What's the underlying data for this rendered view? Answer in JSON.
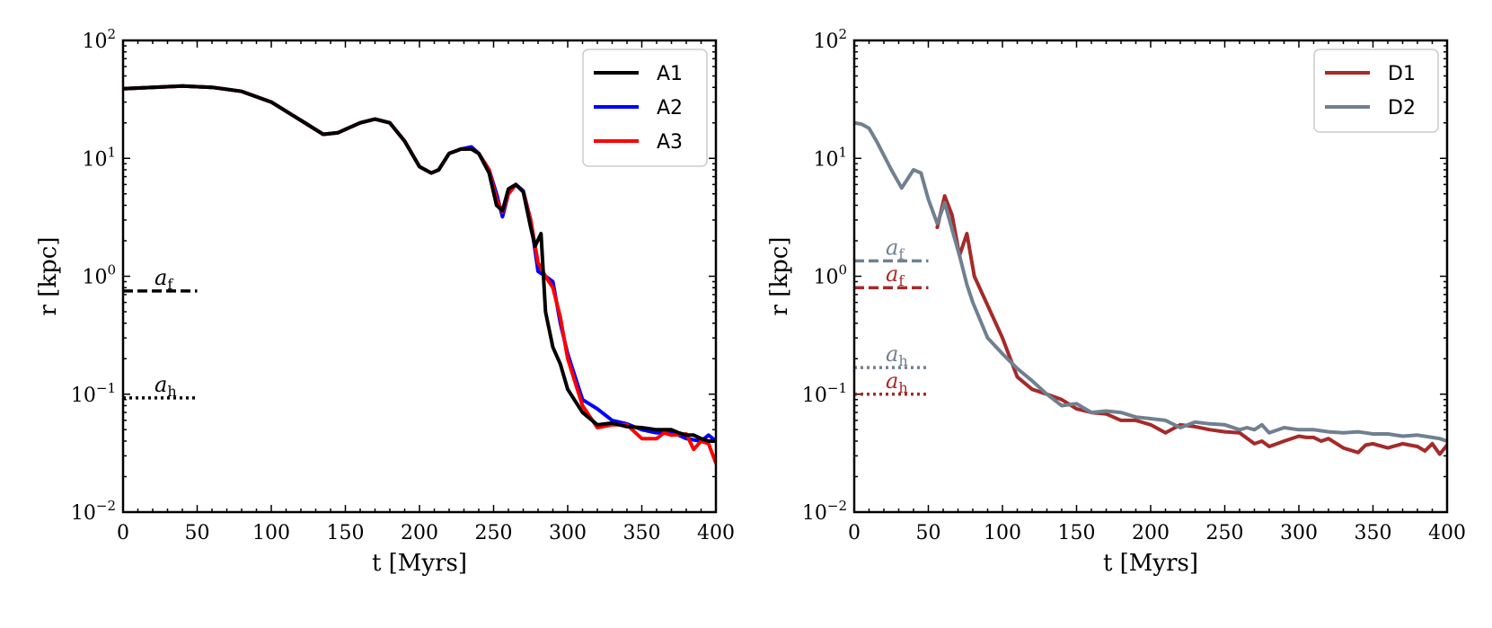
{
  "chart_data": [
    {
      "type": "line",
      "xlabel": "t [Myrs]",
      "ylabel": "r [kpc]",
      "xlim": [
        0,
        400
      ],
      "ylim": [
        0.01,
        100
      ],
      "yscale": "log",
      "xticks": [
        0,
        50,
        100,
        150,
        200,
        250,
        300,
        350,
        400
      ],
      "yticks": [
        {
          "value": 0.01,
          "base": "10",
          "exp": "−2"
        },
        {
          "value": 0.1,
          "base": "10",
          "exp": "−1"
        },
        {
          "value": 1,
          "base": "10",
          "exp": "0"
        },
        {
          "value": 10,
          "base": "10",
          "exp": "1"
        },
        {
          "value": 100,
          "base": "10",
          "exp": "2"
        }
      ],
      "legend_position": "top-right",
      "series": [
        {
          "name": "A2",
          "color": "#0000ff",
          "x": [
            0,
            20,
            40,
            60,
            80,
            100,
            120,
            135,
            145,
            160,
            170,
            180,
            190,
            200,
            208,
            213,
            220,
            228,
            235,
            240,
            247,
            252,
            256,
            260,
            265,
            270,
            275,
            280,
            285,
            290,
            295,
            300,
            310,
            320,
            330,
            340,
            350,
            360,
            370,
            380,
            390,
            395,
            400
          ],
          "y": [
            39,
            40,
            41,
            40,
            37,
            30,
            21,
            16,
            16.5,
            20,
            21.5,
            20,
            14,
            8.5,
            7.5,
            8,
            11,
            12,
            12.5,
            11,
            8,
            5,
            3.2,
            5,
            6,
            5.3,
            3,
            1.1,
            1.0,
            0.9,
            0.4,
            0.22,
            0.09,
            0.075,
            0.06,
            0.056,
            0.05,
            0.047,
            0.048,
            0.042,
            0.04,
            0.045,
            0.04
          ]
        },
        {
          "name": "A3",
          "color": "#ff0000",
          "x": [
            0,
            20,
            40,
            60,
            80,
            100,
            120,
            135,
            145,
            160,
            170,
            180,
            190,
            200,
            208,
            213,
            220,
            228,
            235,
            240,
            247,
            252,
            256,
            260,
            265,
            270,
            275,
            280,
            285,
            290,
            295,
            300,
            310,
            320,
            330,
            340,
            350,
            360,
            365,
            370,
            380,
            385,
            390,
            395,
            400
          ],
          "y": [
            39,
            40,
            41,
            40,
            37,
            30,
            21,
            16,
            16.5,
            20,
            21.5,
            20,
            14,
            8.5,
            7.5,
            8,
            11,
            12,
            12,
            11,
            8,
            4.5,
            3.5,
            5,
            6,
            5.2,
            3,
            1.3,
            1.0,
            0.8,
            0.45,
            0.2,
            0.08,
            0.052,
            0.055,
            0.055,
            0.042,
            0.042,
            0.047,
            0.045,
            0.046,
            0.034,
            0.04,
            0.038,
            0.026
          ]
        },
        {
          "name": "A1",
          "color": "#000000",
          "x": [
            0,
            20,
            40,
            60,
            80,
            100,
            120,
            135,
            145,
            160,
            170,
            180,
            190,
            200,
            208,
            213,
            220,
            228,
            235,
            240,
            247,
            252,
            256,
            260,
            265,
            270,
            275,
            278,
            282,
            285,
            290,
            295,
            300,
            310,
            320,
            330,
            340,
            350,
            360,
            370,
            375,
            380,
            385,
            390,
            395,
            400
          ],
          "y": [
            39,
            40,
            41,
            40,
            37,
            30,
            21,
            16,
            16.5,
            20,
            21.5,
            20,
            14,
            8.5,
            7.5,
            8,
            11,
            12,
            12,
            11,
            7.5,
            4,
            3.6,
            5.5,
            6,
            5.2,
            2.6,
            1.8,
            2.3,
            0.5,
            0.25,
            0.18,
            0.11,
            0.07,
            0.055,
            0.057,
            0.053,
            0.052,
            0.05,
            0.05,
            0.047,
            0.045,
            0.045,
            0.042,
            0.04,
            0.04
          ]
        }
      ],
      "reference_lines": [
        {
          "label_base": "a",
          "label_sub": "f",
          "value": 0.75,
          "style": "dashed",
          "color": "#000000",
          "x_end": 50
        },
        {
          "label_base": "a",
          "label_sub": "h",
          "value": 0.093,
          "style": "dotted",
          "color": "#000000",
          "x_end": 50
        }
      ]
    },
    {
      "type": "line",
      "xlabel": "t [Myrs]",
      "ylabel": "r [kpc]",
      "xlim": [
        0,
        400
      ],
      "ylim": [
        0.01,
        100
      ],
      "yscale": "log",
      "xticks": [
        0,
        50,
        100,
        150,
        200,
        250,
        300,
        350,
        400
      ],
      "yticks": [
        {
          "value": 0.01,
          "base": "10",
          "exp": "−2"
        },
        {
          "value": 0.1,
          "base": "10",
          "exp": "−1"
        },
        {
          "value": 1,
          "base": "10",
          "exp": "0"
        },
        {
          "value": 10,
          "base": "10",
          "exp": "1"
        },
        {
          "value": 100,
          "base": "10",
          "exp": "2"
        }
      ],
      "legend_position": "top-right",
      "series": [
        {
          "name": "D1",
          "color": "#a52a2a",
          "x": [
            56,
            61,
            66,
            71,
            76,
            81,
            100,
            110,
            120,
            130,
            140,
            150,
            160,
            170,
            180,
            190,
            200,
            210,
            220,
            230,
            240,
            250,
            260,
            270,
            275,
            280,
            290,
            300,
            305,
            310,
            315,
            320,
            330,
            340,
            345,
            350,
            360,
            370,
            380,
            385,
            390,
            395,
            400
          ],
          "y": [
            2.6,
            4.8,
            3.3,
            1.5,
            2.3,
            1.0,
            0.3,
            0.14,
            0.11,
            0.1,
            0.09,
            0.075,
            0.07,
            0.068,
            0.06,
            0.06,
            0.055,
            0.047,
            0.055,
            0.053,
            0.05,
            0.048,
            0.047,
            0.038,
            0.04,
            0.036,
            0.04,
            0.044,
            0.043,
            0.043,
            0.04,
            0.042,
            0.035,
            0.032,
            0.037,
            0.038,
            0.035,
            0.038,
            0.036,
            0.033,
            0.038,
            0.031,
            0.037
          ]
        },
        {
          "name": "D2",
          "color": "#708090",
          "x": [
            0,
            5,
            10,
            15,
            25,
            32,
            40,
            45,
            50,
            56,
            61,
            66,
            71,
            76,
            80,
            90,
            100,
            110,
            120,
            130,
            140,
            150,
            160,
            170,
            180,
            190,
            200,
            210,
            220,
            230,
            240,
            250,
            260,
            265,
            270,
            275,
            280,
            290,
            300,
            310,
            320,
            330,
            340,
            345,
            350,
            360,
            370,
            380,
            390,
            395,
            400
          ],
          "y": [
            20,
            19.5,
            18,
            14,
            8,
            5.6,
            8,
            7.5,
            4.5,
            2.8,
            4.2,
            2.5,
            1.5,
            0.85,
            0.6,
            0.3,
            0.22,
            0.165,
            0.13,
            0.1,
            0.08,
            0.083,
            0.07,
            0.072,
            0.07,
            0.064,
            0.062,
            0.06,
            0.052,
            0.058,
            0.056,
            0.055,
            0.05,
            0.052,
            0.05,
            0.055,
            0.047,
            0.052,
            0.05,
            0.05,
            0.048,
            0.047,
            0.048,
            0.047,
            0.046,
            0.046,
            0.044,
            0.045,
            0.043,
            0.042,
            0.04
          ]
        }
      ],
      "reference_lines": [
        {
          "label_base": "a",
          "label_sub": "f",
          "value": 1.35,
          "style": "dashed",
          "color": "#708090",
          "x_end": 50
        },
        {
          "label_base": "a",
          "label_sub": "f",
          "value": 0.8,
          "style": "dashed",
          "color": "#a52a2a",
          "x_end": 50
        },
        {
          "label_base": "a",
          "label_sub": "h",
          "value": 0.168,
          "style": "dotted",
          "color": "#708090",
          "x_end": 50
        },
        {
          "label_base": "a",
          "label_sub": "h",
          "value": 0.1,
          "style": "dotted",
          "color": "#a52a2a",
          "x_end": 50
        }
      ]
    }
  ]
}
